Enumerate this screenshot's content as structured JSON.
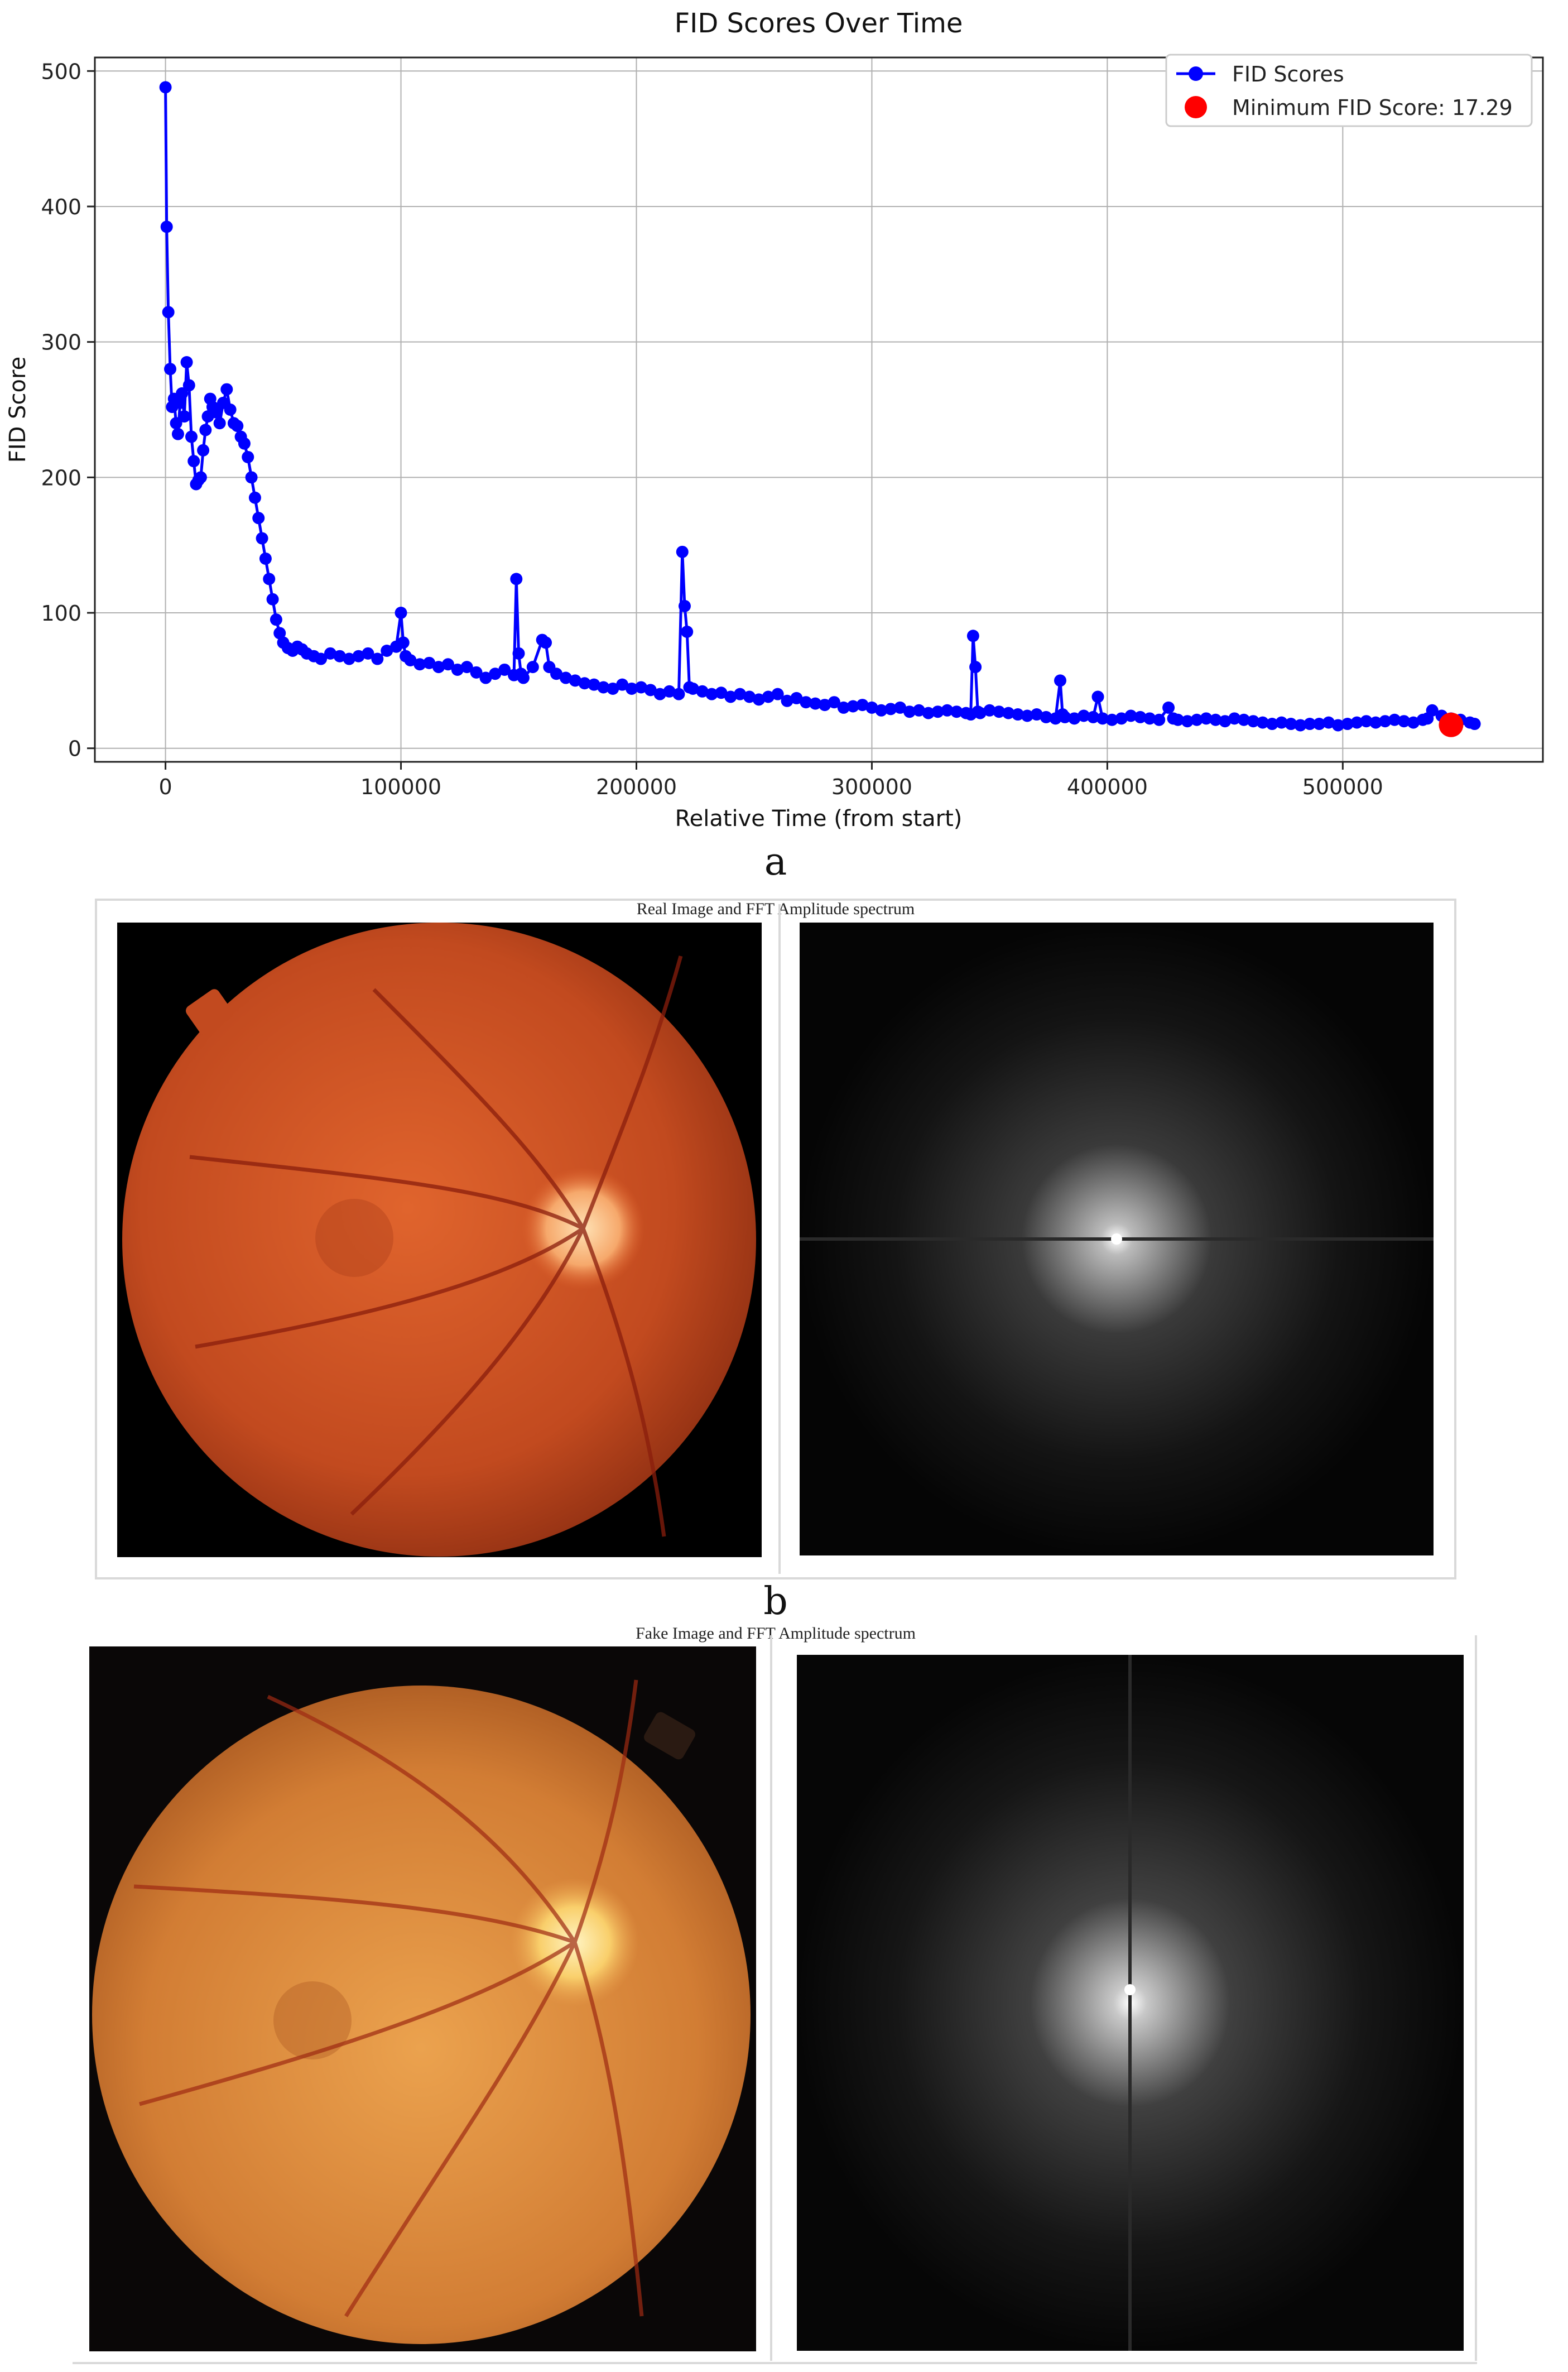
{
  "chart_data": [
    {
      "type": "line",
      "title": "FID Scores Over Time",
      "xlabel": "Relative Time (from start)",
      "ylabel": "FID Score",
      "xlim": [
        -30000,
        585000
      ],
      "ylim": [
        -10,
        510
      ],
      "xticks": [
        0,
        100000,
        200000,
        300000,
        400000,
        500000
      ],
      "xtick_labels": [
        "0",
        "100000",
        "200000",
        "300000",
        "400000",
        "500000"
      ],
      "yticks": [
        0,
        100,
        200,
        300,
        400,
        500
      ],
      "ytick_labels": [
        "0",
        "100",
        "200",
        "300",
        "400",
        "500"
      ],
      "grid": true,
      "legend_position": "top-right",
      "series": [
        {
          "name": "FID Scores",
          "color": "#0000ff",
          "marker": "circle",
          "x": [
            0,
            500,
            1200,
            2000,
            2800,
            3600,
            4500,
            5300,
            6200,
            7000,
            8000,
            9000,
            10000,
            11000,
            12000,
            13000,
            14000,
            15000,
            16000,
            17000,
            18000,
            19000,
            20000,
            21500,
            23000,
            24500,
            26000,
            27500,
            29000,
            30500,
            32000,
            33500,
            35000,
            36500,
            38000,
            39500,
            41000,
            42500,
            44000,
            45500,
            47000,
            48500,
            50000,
            52000,
            54000,
            56000,
            58000,
            60000,
            63000,
            66000,
            70000,
            74000,
            78000,
            82000,
            86000,
            90000,
            94000,
            98000,
            100000,
            101000,
            102000,
            104000,
            108000,
            112000,
            116000,
            120000,
            124000,
            128000,
            132000,
            136000,
            140000,
            144000,
            148000,
            149000,
            150000,
            151000,
            152000,
            156000,
            160000,
            161500,
            163000,
            166000,
            170000,
            174000,
            178000,
            182000,
            186000,
            190000,
            194000,
            198000,
            202000,
            206000,
            210000,
            214000,
            218000,
            219500,
            220500,
            221500,
            222500,
            224000,
            228000,
            232000,
            236000,
            240000,
            244000,
            248000,
            252000,
            256000,
            260000,
            264000,
            268000,
            272000,
            276000,
            280000,
            284000,
            288000,
            292000,
            296000,
            300000,
            304000,
            308000,
            312000,
            316000,
            320000,
            324000,
            328000,
            332000,
            336000,
            340000,
            342000,
            343000,
            344000,
            345000,
            346000,
            350000,
            354000,
            358000,
            362000,
            366000,
            370000,
            374000,
            378000,
            380000,
            381000,
            382000,
            386000,
            390000,
            394000,
            396000,
            398000,
            402000,
            406000,
            410000,
            414000,
            418000,
            422000,
            426000,
            428000,
            430000,
            434000,
            438000,
            442000,
            446000,
            450000,
            454000,
            458000,
            462000,
            466000,
            470000,
            474000,
            478000,
            482000,
            486000,
            490000,
            494000,
            498000,
            502000,
            506000,
            510000,
            514000,
            518000,
            522000,
            526000,
            530000,
            534000,
            536000,
            538000,
            542000,
            546000,
            550000,
            554000,
            556000
          ],
          "y": [
            488,
            385,
            322,
            280,
            252,
            258,
            240,
            232,
            255,
            262,
            245,
            285,
            268,
            230,
            212,
            195,
            198,
            200,
            220,
            235,
            245,
            258,
            252,
            248,
            240,
            255,
            265,
            250,
            240,
            238,
            230,
            225,
            215,
            200,
            185,
            170,
            155,
            140,
            125,
            110,
            95,
            85,
            78,
            74,
            72,
            75,
            73,
            70,
            68,
            66,
            70,
            68,
            66,
            68,
            70,
            66,
            72,
            75,
            100,
            78,
            68,
            65,
            62,
            63,
            60,
            62,
            58,
            60,
            56,
            52,
            55,
            58,
            54,
            125,
            70,
            55,
            52,
            60,
            80,
            78,
            60,
            55,
            52,
            50,
            48,
            47,
            45,
            44,
            47,
            44,
            45,
            43,
            40,
            42,
            40,
            145,
            105,
            86,
            45,
            44,
            42,
            40,
            41,
            38,
            40,
            38,
            36,
            38,
            40,
            35,
            37,
            34,
            33,
            32,
            34,
            30,
            31,
            32,
            30,
            28,
            29,
            30,
            27,
            28,
            26,
            27,
            28,
            27,
            26,
            25,
            83,
            60,
            27,
            26,
            28,
            27,
            26,
            25,
            24,
            25,
            23,
            22,
            50,
            25,
            23,
            22,
            24,
            23,
            38,
            22,
            21,
            22,
            24,
            23,
            22,
            21,
            30,
            22,
            21,
            20,
            21,
            22,
            21,
            20,
            22,
            21,
            20,
            19,
            18,
            19,
            18,
            17,
            18,
            18,
            19,
            17,
            18,
            19,
            20,
            19,
            20,
            21,
            20,
            19,
            21,
            22,
            28,
            24,
            22,
            21,
            19,
            18
          ]
        },
        {
          "name": "Minimum FID Score: 17.29",
          "color": "#ff0000",
          "marker": "circle",
          "x": [
            546000
          ],
          "y": [
            17.29
          ]
        }
      ]
    }
  ],
  "panels": {
    "a_caption": "a",
    "b_caption": "b",
    "real_title": "Real Image and FFT Amplitude spectrum",
    "fake_title": "Fake Image and FFT Amplitude spectrum"
  }
}
